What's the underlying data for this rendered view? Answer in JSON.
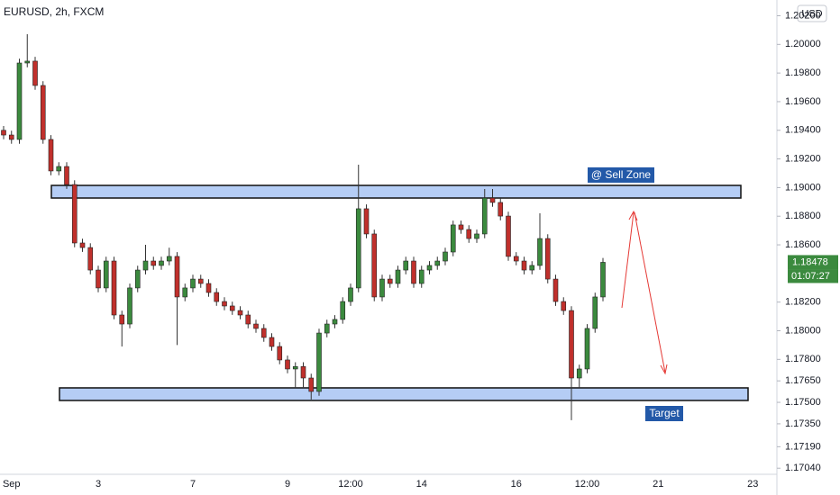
{
  "chart_data": {
    "type": "candlestick",
    "title": "EURUSD, 2h, FXCM",
    "currency": "USD",
    "countdown": "01:07:27",
    "up_color": "#3b8a3e",
    "down_color": "#c0302c",
    "categories": [
      null,
      "Sep",
      null,
      null,
      null,
      null,
      null,
      null,
      null,
      null,
      null,
      null,
      "3",
      null,
      null,
      null,
      null,
      null,
      null,
      null,
      null,
      null,
      null,
      null,
      "7",
      null,
      null,
      null,
      null,
      null,
      null,
      null,
      null,
      null,
      null,
      null,
      "9",
      null,
      null,
      null,
      null,
      null,
      null,
      null,
      "12:00",
      null,
      null,
      null,
      null,
      null,
      null,
      null,
      null,
      "14",
      null,
      null,
      null,
      null,
      null,
      null,
      null,
      null,
      null,
      null,
      null,
      "16",
      null,
      null,
      null,
      null,
      null,
      null,
      null,
      null,
      "12:00",
      null,
      null,
      null,
      null,
      null,
      null,
      null,
      null,
      "21",
      null,
      null,
      null,
      null,
      null,
      null,
      null,
      null,
      null,
      null,
      null,
      "23"
    ],
    "open": [
      1.194,
      1.19367,
      1.19336,
      1.1987,
      1.19883,
      1.19713,
      1.19336,
      1.19116,
      1.19147,
      1.19021,
      1.18613,
      1.18581,
      1.18424,
      1.18299,
      1.18487,
      1.1811,
      1.18047,
      1.18299,
      1.18424,
      1.18487,
      1.18456,
      1.18487,
      1.18519,
      1.18236,
      1.18299,
      1.18361,
      1.1833,
      1.18267,
      1.18204,
      1.18173,
      1.18141,
      1.1811,
      1.18047,
      1.18016,
      1.17953,
      1.1789,
      1.17796,
      1.17733,
      1.1775,
      1.1767,
      1.17576,
      1.17984,
      1.18047,
      1.18079,
      1.18204,
      1.18299,
      1.18852,
      1.18676,
      1.18236,
      1.18361,
      1.1833,
      1.18424,
      1.18487,
      1.1833,
      1.18424,
      1.18456,
      1.18487,
      1.1855,
      1.18739,
      1.18707,
      1.18644,
      1.18676,
      1.18927,
      1.18896,
      1.18801,
      1.18519,
      1.18487,
      1.18424,
      1.18456,
      1.18644,
      1.18361,
      1.18204,
      1.18141,
      1.1767,
      1.17733,
      1.18016,
      1.18236,
      null,
      null,
      null,
      null,
      null,
      null,
      null,
      null,
      null,
      null,
      null,
      null,
      null,
      null,
      null,
      null,
      null,
      null,
      null
    ],
    "high": [
      1.1943,
      1.19397,
      1.199,
      1.20071,
      1.19913,
      1.19743,
      1.19366,
      1.19177,
      1.19177,
      1.19051,
      1.18643,
      1.18611,
      1.18454,
      1.18517,
      1.18517,
      1.1814,
      1.18329,
      1.18454,
      1.186,
      1.18517,
      1.18517,
      1.1858,
      1.18549,
      1.18329,
      1.18391,
      1.18391,
      1.1836,
      1.18297,
      1.18234,
      1.18203,
      1.18171,
      1.1814,
      1.18077,
      1.18046,
      1.17983,
      1.1792,
      1.17826,
      1.1778,
      1.1778,
      1.177,
      1.18014,
      1.18077,
      1.18109,
      1.18234,
      1.18329,
      1.1916,
      1.18882,
      1.18706,
      1.18391,
      1.18391,
      1.18454,
      1.18517,
      1.18517,
      1.18454,
      1.18486,
      1.18517,
      1.1858,
      1.18769,
      1.18769,
      1.18737,
      1.18706,
      1.1899,
      1.1899,
      1.18926,
      1.18831,
      1.18549,
      1.18517,
      1.18486,
      1.1882,
      1.18674,
      1.18391,
      1.18234,
      1.18171,
      1.17763,
      1.18046,
      1.18266,
      1.18508,
      null,
      null,
      null,
      null,
      null,
      null,
      null,
      null,
      null,
      null,
      null,
      null,
      null,
      null,
      null,
      null,
      null,
      null,
      null
    ],
    "low": [
      1.19337,
      1.19306,
      1.19306,
      1.1984,
      1.19683,
      1.19306,
      1.19086,
      1.19086,
      1.18991,
      1.18583,
      1.18551,
      1.18394,
      1.18269,
      1.18269,
      1.1808,
      1.1789,
      1.18017,
      1.18269,
      1.18394,
      1.18426,
      1.18426,
      1.18457,
      1.179,
      1.18206,
      1.18269,
      1.183,
      1.18237,
      1.18174,
      1.18143,
      1.18111,
      1.1808,
      1.18017,
      1.17986,
      1.17923,
      1.1786,
      1.17766,
      1.17703,
      1.176,
      1.176,
      1.1752,
      1.17546,
      1.17954,
      1.18017,
      1.18049,
      1.18174,
      1.18269,
      1.18646,
      1.18206,
      1.18206,
      1.183,
      1.183,
      1.18394,
      1.183,
      1.183,
      1.18394,
      1.18426,
      1.18457,
      1.1852,
      1.18677,
      1.18614,
      1.18614,
      1.18646,
      1.18866,
      1.18771,
      1.18489,
      1.18457,
      1.18394,
      1.18394,
      1.18426,
      1.18331,
      1.18174,
      1.18111,
      1.17375,
      1.176,
      1.17703,
      1.17986,
      1.18206,
      null,
      null,
      null,
      null,
      null,
      null,
      null,
      null,
      null,
      null,
      null,
      null,
      null,
      null,
      null,
      null,
      null,
      null,
      null
    ],
    "close": [
      1.19367,
      1.19336,
      1.1987,
      1.19883,
      1.19713,
      1.19336,
      1.19116,
      1.19147,
      1.19021,
      1.18613,
      1.18581,
      1.18424,
      1.18299,
      1.18487,
      1.1811,
      1.18047,
      1.18299,
      1.18424,
      1.18487,
      1.18456,
      1.18487,
      1.18519,
      1.18236,
      1.18299,
      1.18361,
      1.1833,
      1.18267,
      1.18204,
      1.18173,
      1.18141,
      1.1811,
      1.18047,
      1.18016,
      1.17953,
      1.1789,
      1.17796,
      1.17733,
      1.1775,
      1.1767,
      1.17576,
      1.17984,
      1.18047,
      1.18079,
      1.18204,
      1.18299,
      1.18852,
      1.18676,
      1.18236,
      1.18361,
      1.1833,
      1.18424,
      1.18487,
      1.1833,
      1.18424,
      1.18456,
      1.18487,
      1.1855,
      1.18739,
      1.18707,
      1.18644,
      1.18676,
      1.18927,
      1.18896,
      1.18801,
      1.18519,
      1.18487,
      1.18424,
      1.18456,
      1.18644,
      1.18361,
      1.18204,
      1.18141,
      1.1767,
      1.17733,
      1.18016,
      1.18236,
      1.18478,
      null,
      null,
      null,
      null,
      null,
      null,
      null,
      null,
      null,
      null,
      null,
      null,
      null,
      null,
      null,
      null,
      null,
      null,
      null
    ],
    "ylim": [
      1.1701,
      1.2031
    ],
    "yticks": [
      {
        "value": 1.202,
        "label": "1.20200"
      },
      {
        "value": 1.2,
        "label": "1.20000"
      },
      {
        "value": 1.198,
        "label": "1.19800"
      },
      {
        "value": 1.196,
        "label": "1.19600"
      },
      {
        "value": 1.194,
        "label": "1.19400"
      },
      {
        "value": 1.192,
        "label": "1.19200"
      },
      {
        "value": 1.19,
        "label": "1.19000"
      },
      {
        "value": 1.188,
        "label": "1.18800"
      },
      {
        "value": 1.186,
        "label": "1.18600"
      },
      {
        "value": 1.182,
        "label": "1.18200"
      },
      {
        "value": 1.18,
        "label": "1.18000"
      },
      {
        "value": 1.178,
        "label": "1.17800"
      },
      {
        "value": 1.1765,
        "label": "1.17650"
      },
      {
        "value": 1.175,
        "label": "1.17500"
      },
      {
        "value": 1.1735,
        "label": "1.17350"
      },
      {
        "value": 1.1719,
        "label": "1.17190"
      },
      {
        "value": 1.1704,
        "label": "1.17040"
      }
    ],
    "zones": [
      {
        "label": "@ Sell Zone",
        "top": 1.19015,
        "bottom": 1.18927
      },
      {
        "label": "Target",
        "top": 1.17601,
        "bottom": 1.17513
      }
    ]
  }
}
